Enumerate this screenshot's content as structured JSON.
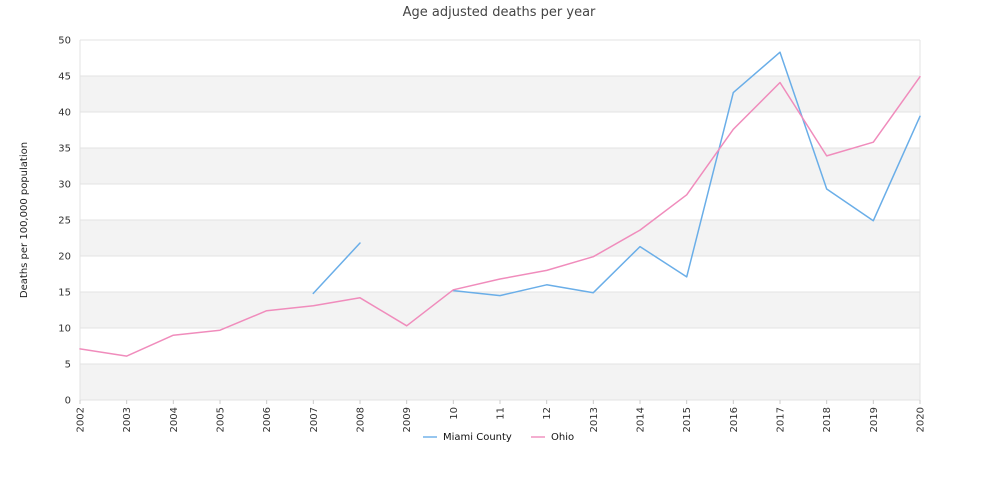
{
  "chart_data": {
    "type": "line",
    "title": "Age adjusted deaths per year",
    "xlabel": "",
    "ylabel": "Deaths per 100,000 population",
    "categories": [
      "2002",
      "2003",
      "2004",
      "2005",
      "2006",
      "2007",
      "2008",
      "2009",
      "10",
      "11",
      "12",
      "2013",
      "2014",
      "2015",
      "2016",
      "2017",
      "2018",
      "2019",
      "2020"
    ],
    "ylim": [
      0,
      50
    ],
    "yticks": [
      0,
      5,
      10,
      15,
      20,
      25,
      30,
      35,
      40,
      45,
      50
    ],
    "grid": true,
    "legend_position": "bottom-center",
    "series": [
      {
        "name": "Miami County",
        "color": "#6aaee8",
        "values": [
          null,
          null,
          null,
          null,
          null,
          14.8,
          21.8,
          null,
          15.2,
          14.5,
          16.0,
          14.9,
          21.3,
          17.1,
          42.7,
          48.3,
          29.3,
          24.9,
          39.4
        ]
      },
      {
        "name": "Ohio",
        "color": "#f08cbc",
        "values": [
          7.1,
          6.1,
          9.0,
          9.7,
          12.4,
          13.1,
          14.2,
          10.3,
          15.3,
          16.8,
          18.0,
          19.9,
          23.6,
          28.5,
          37.6,
          44.1,
          33.9,
          35.8,
          44.9
        ]
      }
    ],
    "band_color": "#f3f3f3",
    "grid_color": "#e3e3e3"
  }
}
